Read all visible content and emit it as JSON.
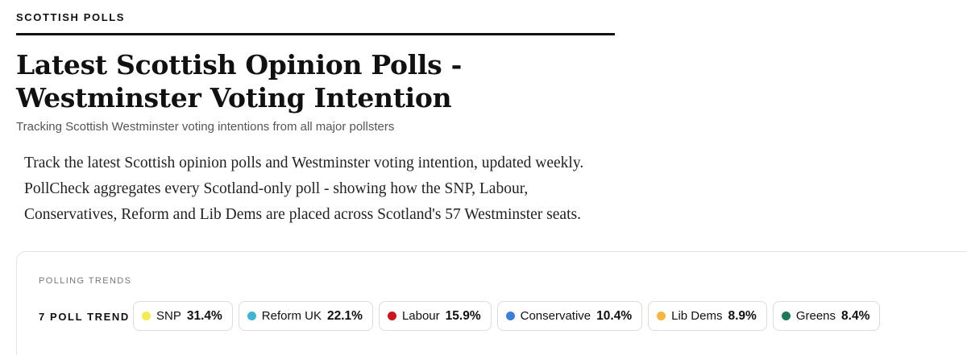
{
  "header": {
    "section": "SCOTTISH POLLS",
    "title": "Latest Scottish Opinion Polls - Westminster Voting Intention",
    "subtitle": "Tracking Scottish Westminster voting intentions from all major pollsters"
  },
  "intro": "Track the latest Scottish opinion polls and Westminster voting intention, updated weekly. PollCheck aggregates every Scotland-only poll - showing how the SNP, Labour, Conservatives, Reform and Lib Dems are placed across Scotland's 57 Westminster seats.",
  "panel": {
    "label": "POLLING TRENDS",
    "trend_label": "7 POLL TREND",
    "parties": [
      {
        "name": "SNP",
        "share": "31.4%",
        "color": "#f3ec4f"
      },
      {
        "name": "Reform UK",
        "share": "22.1%",
        "color": "#3db6d4"
      },
      {
        "name": "Labour",
        "share": "15.9%",
        "color": "#cf141d"
      },
      {
        "name": "Conservative",
        "share": "10.4%",
        "color": "#3a7fd9"
      },
      {
        "name": "Lib Dems",
        "share": "8.9%",
        "color": "#f5b63b"
      },
      {
        "name": "Greens",
        "share": "8.4%",
        "color": "#1c7a59"
      }
    ]
  }
}
